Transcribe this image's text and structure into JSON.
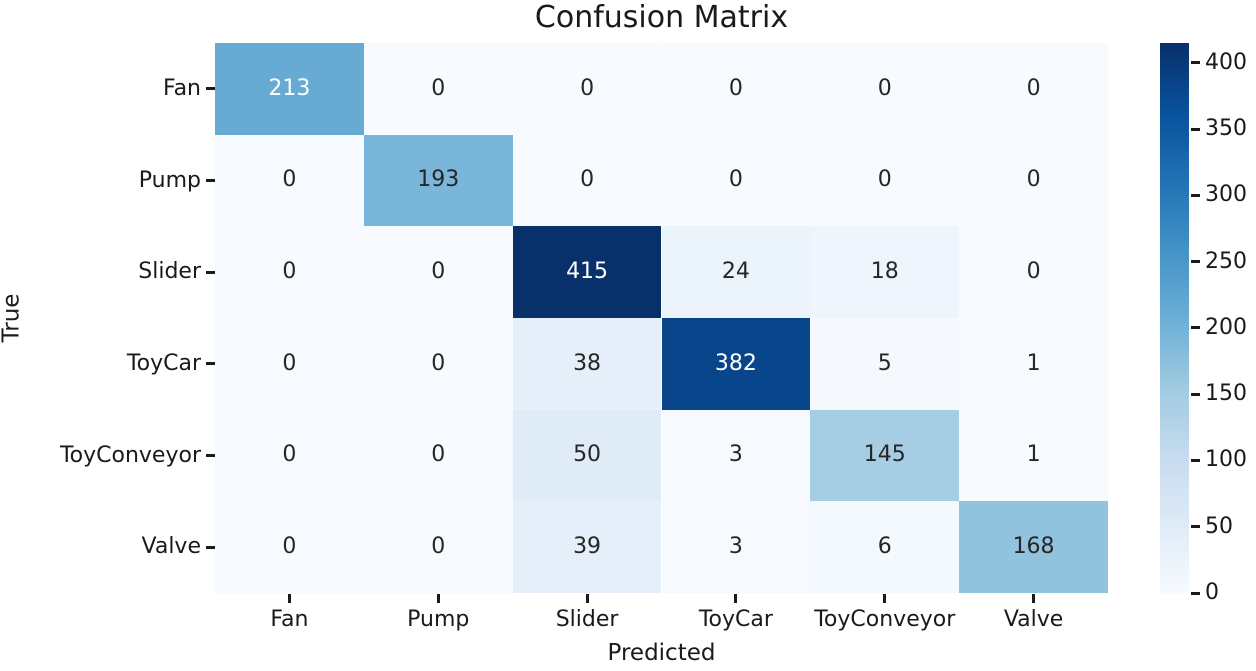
{
  "chart_data": {
    "type": "heatmap",
    "title": "Confusion Matrix",
    "xlabel": "Predicted",
    "ylabel": "True",
    "x_categories": [
      "Fan",
      "Pump",
      "Slider",
      "ToyCar",
      "ToyConveyor",
      "Valve"
    ],
    "y_categories": [
      "Fan",
      "Pump",
      "Slider",
      "ToyCar",
      "ToyConveyor",
      "Valve"
    ],
    "values": [
      [
        213,
        0,
        0,
        0,
        0,
        0
      ],
      [
        0,
        193,
        0,
        0,
        0,
        0
      ],
      [
        0,
        0,
        415,
        24,
        18,
        0
      ],
      [
        0,
        0,
        38,
        382,
        5,
        1
      ],
      [
        0,
        0,
        50,
        3,
        145,
        1
      ],
      [
        0,
        0,
        39,
        3,
        6,
        168
      ]
    ],
    "annotated": true,
    "grid": false,
    "vmin": 0,
    "vmax": 415,
    "colormap": "Blues",
    "colormap_stops": [
      [
        0.0,
        "#f7fbff"
      ],
      [
        0.125,
        "#deebf7"
      ],
      [
        0.25,
        "#c6dbef"
      ],
      [
        0.375,
        "#9ecae1"
      ],
      [
        0.5,
        "#6baed6"
      ],
      [
        0.625,
        "#4292c6"
      ],
      [
        0.75,
        "#2171b5"
      ],
      [
        0.875,
        "#08519c"
      ],
      [
        1.0,
        "#08306b"
      ]
    ],
    "colorbar_position": "right",
    "colorbar_ticks": [
      0,
      50,
      100,
      150,
      200,
      250,
      300,
      350,
      400
    ]
  },
  "colors": {
    "annotation_dark": "#262626",
    "annotation_light": "#ffffff",
    "axis_text": "#1a1a1a",
    "background": "#ffffff"
  }
}
